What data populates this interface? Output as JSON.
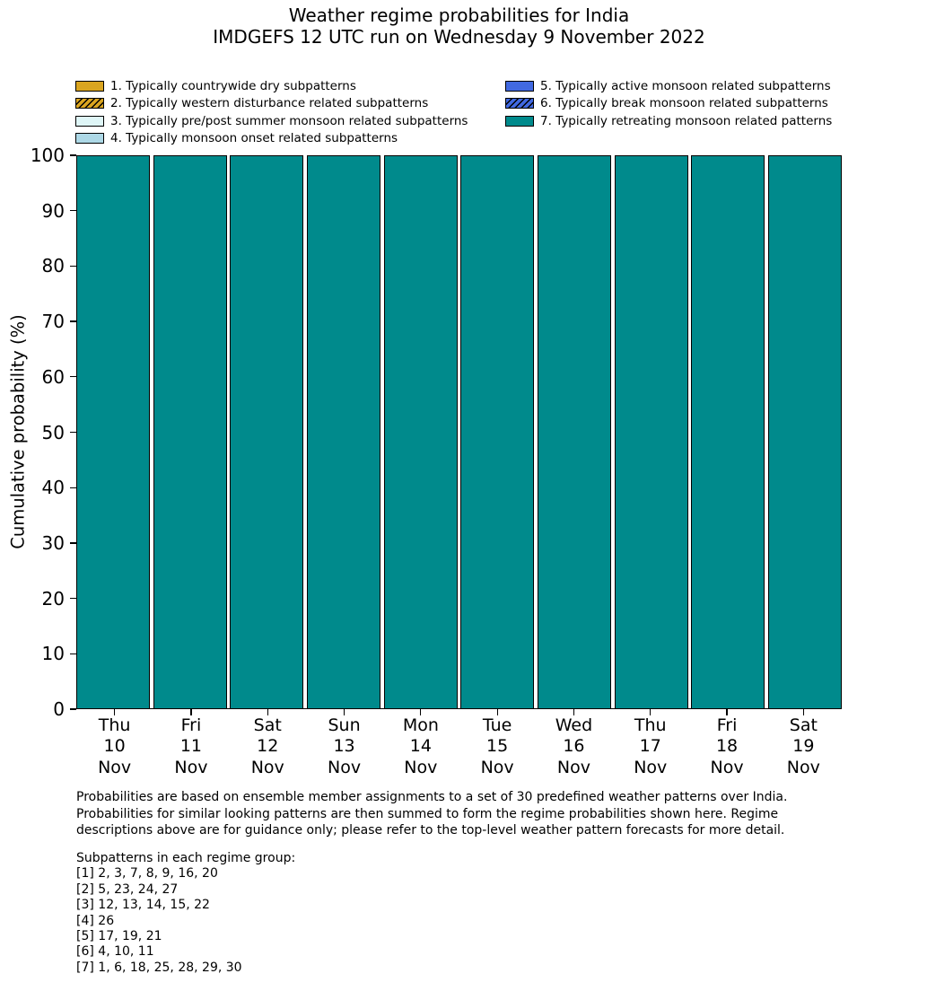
{
  "title": {
    "line1": "Weather regime probabilities for India",
    "line2": "IMDGEFS 12 UTC run on Wednesday 9 November 2022"
  },
  "legend": {
    "items": [
      {
        "label": "1. Typically countrywide dry subpatterns",
        "color": "#DAA520",
        "hatch": false,
        "column": "left"
      },
      {
        "label": "2. Typically western disturbance related subpatterns",
        "color": "#DAA520",
        "hatch": true,
        "column": "left"
      },
      {
        "label": "3. Typically pre/post summer monsoon related subpatterns",
        "color": "#DFF6F7",
        "hatch": false,
        "column": "left"
      },
      {
        "label": "4. Typically monsoon onset related subpatterns",
        "color": "#ADD8E6",
        "hatch": false,
        "column": "left"
      },
      {
        "label": "5. Typically active monsoon related subpatterns",
        "color": "#4169E1",
        "hatch": false,
        "column": "right"
      },
      {
        "label": "6. Typically break monsoon related subpatterns",
        "color": "#4169E1",
        "hatch": true,
        "column": "right"
      },
      {
        "label": "7. Typically retreating monsoon related patterns",
        "color": "#008A8C",
        "hatch": false,
        "column": "right"
      }
    ]
  },
  "chart_data": {
    "type": "bar",
    "stacked": true,
    "title": "Weather regime probabilities for India",
    "subtitle": "IMDGEFS 12 UTC run on Wednesday 9 November 2022",
    "xlabel": "",
    "ylabel": "Cumulative probability (%)",
    "ylim": [
      0,
      100
    ],
    "yticks": [
      0,
      10,
      20,
      30,
      40,
      50,
      60,
      70,
      80,
      90,
      100
    ],
    "grid": false,
    "legend_position": "top",
    "categories": [
      [
        "Thu",
        "10",
        "Nov"
      ],
      [
        "Fri",
        "11",
        "Nov"
      ],
      [
        "Sat",
        "12",
        "Nov"
      ],
      [
        "Sun",
        "13",
        "Nov"
      ],
      [
        "Mon",
        "14",
        "Nov"
      ],
      [
        "Tue",
        "15",
        "Nov"
      ],
      [
        "Wed",
        "16",
        "Nov"
      ],
      [
        "Thu",
        "17",
        "Nov"
      ],
      [
        "Fri",
        "18",
        "Nov"
      ],
      [
        "Sat",
        "19",
        "Nov"
      ]
    ],
    "series": [
      {
        "name": "1. Typically countrywide dry subpatterns",
        "color": "#DAA520",
        "hatch": false,
        "values": [
          0,
          0,
          0,
          0,
          0,
          0,
          0,
          0,
          0,
          0
        ]
      },
      {
        "name": "2. Typically western disturbance related subpatterns",
        "color": "#DAA520",
        "hatch": true,
        "values": [
          0,
          0,
          0,
          0,
          0,
          0,
          0,
          0,
          0,
          0
        ]
      },
      {
        "name": "3. Typically pre/post summer monsoon related subpatterns",
        "color": "#DFF6F7",
        "hatch": false,
        "values": [
          0,
          0,
          0,
          0,
          0,
          0,
          0,
          0,
          0,
          0
        ]
      },
      {
        "name": "4. Typically monsoon onset related subpatterns",
        "color": "#ADD8E6",
        "hatch": false,
        "values": [
          0,
          0,
          0,
          0,
          0,
          0,
          0,
          0,
          0,
          0
        ]
      },
      {
        "name": "5. Typically active monsoon related subpatterns",
        "color": "#4169E1",
        "hatch": false,
        "values": [
          0,
          0,
          0,
          0,
          0,
          0,
          0,
          0,
          0,
          0
        ]
      },
      {
        "name": "6. Typically break monsoon related subpatterns",
        "color": "#4169E1",
        "hatch": true,
        "values": [
          0,
          0,
          0,
          0,
          0,
          0,
          0,
          0,
          0,
          0
        ]
      },
      {
        "name": "7. Typically retreating monsoon related patterns",
        "color": "#008A8C",
        "hatch": false,
        "values": [
          100,
          100,
          100,
          100,
          100,
          100,
          100,
          100,
          100,
          100
        ]
      }
    ]
  },
  "footer": {
    "lines": [
      "Probabilities are based on ensemble member assignments to a set of 30 predefined weather patterns over India.",
      "Probabilities for similar looking patterns are then summed to form the regime probabilities shown here. Regime",
      "descriptions above are for guidance only; please refer to the top-level weather pattern forecasts for more detail."
    ]
  },
  "subpatterns": {
    "heading": "Subpatterns in each regime group:",
    "lines": [
      "[1] 2, 3, 7, 8, 9, 16, 20",
      "[2] 5, 23, 24, 27",
      "[3] 12, 13, 14, 15, 22",
      "[4] 26",
      "[5] 17, 19, 21",
      "[6] 4, 10, 11",
      "[7] 1, 6, 18, 25, 28, 29, 30"
    ]
  }
}
